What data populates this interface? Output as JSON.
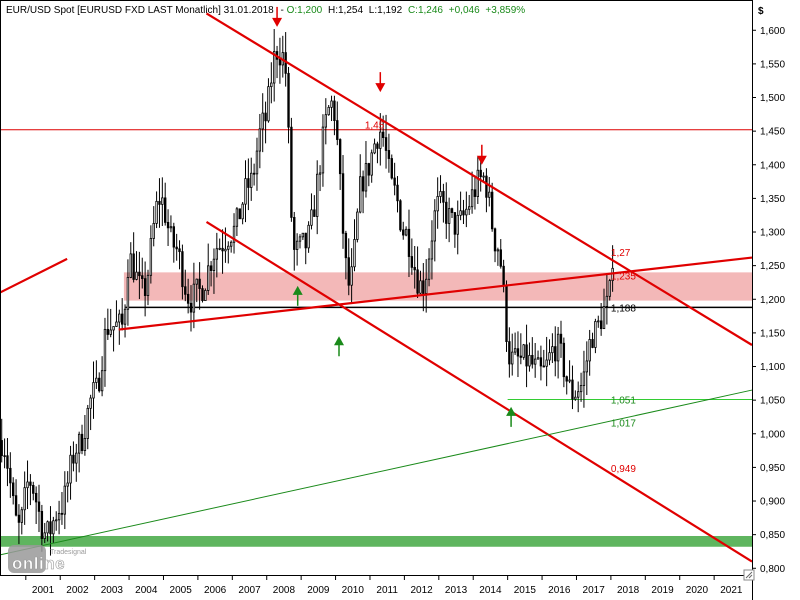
{
  "header": {
    "instrument": "EUR/USD Spot [EURUSD FXD LAST Monatlich] 31.01.2018",
    "open": "O:1,200",
    "high": "H:1,254",
    "low": "L:1,192",
    "close": "C:1,246",
    "change": "+0,046",
    "change_pct": "+3,859%"
  },
  "currency_symbol": "$",
  "watermark": {
    "brand": "Tradesignal",
    "product": "online"
  },
  "colors": {
    "bull": "#1a8a1a",
    "bear": "#dd0000",
    "zone": "#f3b8b8",
    "support_band": "#5fb55f",
    "candle": "#000000"
  },
  "chart_data": {
    "type": "candlestick",
    "period": "monthly",
    "x_tick_labels": [
      "2001",
      "2002",
      "2003",
      "2004",
      "2005",
      "2006",
      "2007",
      "2008",
      "2009",
      "2010",
      "2011",
      "2012",
      "2013",
      "2014",
      "2015",
      "2016",
      "2017",
      "2018",
      "2019",
      "2020",
      "2021"
    ],
    "y_tick_labels": [
      "0,800",
      "0,850",
      "0,900",
      "0,950",
      "1,000",
      "1,050",
      "1,100",
      "1,150",
      "1,200",
      "1,250",
      "1,300",
      "1,350",
      "1,400",
      "1,450",
      "1,500",
      "1,550",
      "1,600"
    ],
    "ylim": [
      0.79,
      1.645
    ],
    "xlim": [
      2000.25,
      2022.1
    ],
    "anchors": [
      [
        2000.3,
        0.99
      ],
      [
        2000.8,
        0.86
      ],
      [
        2001.1,
        0.93
      ],
      [
        2001.6,
        0.85
      ],
      [
        2002.0,
        0.89
      ],
      [
        2002.5,
        0.98
      ],
      [
        2003.0,
        1.06
      ],
      [
        2003.4,
        1.16
      ],
      [
        2003.8,
        1.16
      ],
      [
        2004.0,
        1.26
      ],
      [
        2004.4,
        1.21
      ],
      [
        2004.9,
        1.35
      ],
      [
        2005.3,
        1.28
      ],
      [
        2005.8,
        1.2
      ],
      [
        2006.0,
        1.21
      ],
      [
        2006.6,
        1.28
      ],
      [
        2007.0,
        1.3
      ],
      [
        2007.5,
        1.37
      ],
      [
        2007.9,
        1.46
      ],
      [
        2008.3,
        1.57
      ],
      [
        2008.5,
        1.56
      ],
      [
        2008.8,
        1.27
      ],
      [
        2009.1,
        1.28
      ],
      [
        2009.9,
        1.49
      ],
      [
        2010.4,
        1.22
      ],
      [
        2010.8,
        1.38
      ],
      [
        2011.3,
        1.45
      ],
      [
        2011.7,
        1.36
      ],
      [
        2012.0,
        1.3
      ],
      [
        2012.5,
        1.22
      ],
      [
        2013.0,
        1.34
      ],
      [
        2013.5,
        1.31
      ],
      [
        2014.3,
        1.38
      ],
      [
        2014.7,
        1.28
      ],
      [
        2015.1,
        1.11
      ],
      [
        2015.5,
        1.11
      ],
      [
        2016.0,
        1.09
      ],
      [
        2016.4,
        1.13
      ],
      [
        2016.9,
        1.06
      ],
      [
        2017.1,
        1.07
      ],
      [
        2017.5,
        1.15
      ],
      [
        2017.9,
        1.19
      ],
      [
        2018.08,
        1.246
      ]
    ],
    "horizontal_lines": [
      {
        "name": "resistance-2011",
        "y": 1.452
      },
      {
        "name": "neckline",
        "y": 1.188
      },
      {
        "name": "support-2015",
        "y": 1.051
      }
    ],
    "zones": [
      {
        "name": "resistance-zone",
        "y1": 1.198,
        "y2": 1.24,
        "x_start": 2003.85
      },
      {
        "name": "support-band",
        "y1": 0.832,
        "y2": 0.848,
        "x_start": 2000.25
      }
    ],
    "trend_lines": [
      {
        "name": "channel-upper",
        "x1": 2006.25,
        "y1": 1.625,
        "x2": 2022.1,
        "y2": 1.132
      },
      {
        "name": "channel-lower",
        "x1": 2006.25,
        "y1": 1.315,
        "x2": 2022.1,
        "y2": 0.81
      },
      {
        "name": "rising-red-trend",
        "x1": 2003.7,
        "y1": 1.155,
        "x2": 2022.1,
        "y2": 1.262
      },
      {
        "name": "old-red-trend",
        "x1": 2000.25,
        "y1": 1.21,
        "x2": 2002.2,
        "y2": 1.26
      },
      {
        "name": "long-green-trend",
        "x1": 2000.25,
        "y1": 0.82,
        "x2": 2022.1,
        "y2": 1.065
      }
    ],
    "level_labels": [
      {
        "text": "1,27",
        "x": 2018.0,
        "y": 1.27,
        "color": "red"
      },
      {
        "text": "1,235",
        "x": 2018.0,
        "y": 1.235,
        "color": "red"
      },
      {
        "text": "1,188",
        "x": 2018.0,
        "y": 1.188,
        "color": "black"
      },
      {
        "text": "1,051",
        "x": 2018.0,
        "y": 1.051,
        "color": "green"
      },
      {
        "text": "1,017",
        "x": 2018.0,
        "y": 1.017,
        "color": "green"
      },
      {
        "text": "0,949",
        "x": 2018.0,
        "y": 0.949,
        "color": "red"
      },
      {
        "text": "1,45",
        "x": 2010.85,
        "y": 1.46,
        "color": "red"
      }
    ],
    "markers": [
      {
        "dir": "down",
        "x": 2008.3,
        "y": 1.605
      },
      {
        "dir": "down",
        "x": 2011.3,
        "y": 1.508
      },
      {
        "dir": "down",
        "x": 2014.25,
        "y": 1.4
      },
      {
        "dir": "up",
        "x": 2008.9,
        "y": 1.22
      },
      {
        "dir": "up",
        "x": 2010.1,
        "y": 1.145
      },
      {
        "dir": "up",
        "x": 2015.1,
        "y": 1.04
      }
    ]
  }
}
